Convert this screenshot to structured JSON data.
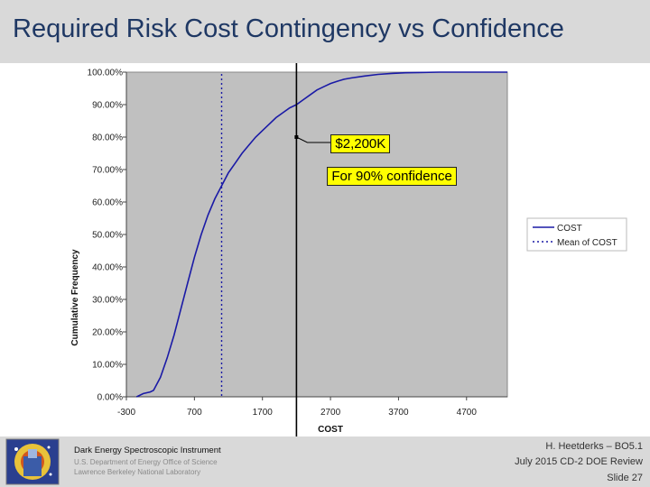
{
  "slide": {
    "title": "Required Risk Cost Contingency vs Confidence"
  },
  "callouts": {
    "value_label": "$2,200K",
    "confidence_label": "For 90% confidence"
  },
  "footer": {
    "institution": "Dark Energy Spectroscopic Instrument",
    "department": "U.S. Department of Energy Office of Science",
    "laboratory": "Lawrence Berkeley National Laboratory",
    "presenter": "H. Heetderks – BO5.1",
    "review": "July 2015 CD-2 DOE Review",
    "slide_number": "Slide 27"
  },
  "colors": {
    "plot_background": "#c0c0c0",
    "series_line": "#1a1aa6",
    "mean_line": "#1a1aa6",
    "callout_fill": "#ffff00"
  },
  "chart_data": {
    "type": "line",
    "xlabel": "COST",
    "ylabel": "Cumulative Frequency",
    "xlim": [
      -300,
      5300
    ],
    "ylim": [
      0,
      1
    ],
    "x_ticks": [
      -300,
      700,
      1700,
      2700,
      3700,
      4700
    ],
    "x_tick_labels": [
      "-300",
      "700",
      "1700",
      "2700",
      "3700",
      "4700"
    ],
    "y_ticks": [
      0,
      0.1,
      0.2,
      0.3,
      0.4,
      0.5,
      0.6,
      0.7,
      0.8,
      0.9,
      1.0
    ],
    "y_tick_labels": [
      "0.00%",
      "10.00%",
      "20.00%",
      "30.00%",
      "40.00%",
      "50.00%",
      "60.00%",
      "70.00%",
      "80.00%",
      "90.00%",
      "100.00%"
    ],
    "grid": false,
    "legend_position": "right",
    "series": [
      {
        "name": "COST",
        "style": "solid",
        "x": [
          -150,
          -50,
          50,
          100,
          200,
          300,
          400,
          500,
          600,
          700,
          800,
          900,
          1000,
          1100,
          1200,
          1300,
          1400,
          1500,
          1600,
          1700,
          1800,
          1900,
          2000,
          2100,
          2200,
          2300,
          2400,
          2500,
          2600,
          2700,
          2800,
          2900,
          3000,
          3200,
          3400,
          3600,
          3800,
          4000,
          4300,
          4700,
          5300
        ],
        "y": [
          0.0,
          0.01,
          0.015,
          0.02,
          0.06,
          0.12,
          0.19,
          0.27,
          0.35,
          0.43,
          0.5,
          0.56,
          0.61,
          0.65,
          0.69,
          0.72,
          0.75,
          0.775,
          0.8,
          0.82,
          0.84,
          0.86,
          0.875,
          0.89,
          0.9,
          0.915,
          0.93,
          0.945,
          0.955,
          0.965,
          0.972,
          0.978,
          0.982,
          0.988,
          0.993,
          0.996,
          0.998,
          0.999,
          1.0,
          1.0,
          1.0
        ]
      },
      {
        "name": "Mean of COST",
        "style": "dotted",
        "x_value": 1100
      }
    ],
    "annotation": {
      "vertical_line_x": 2200
    }
  }
}
